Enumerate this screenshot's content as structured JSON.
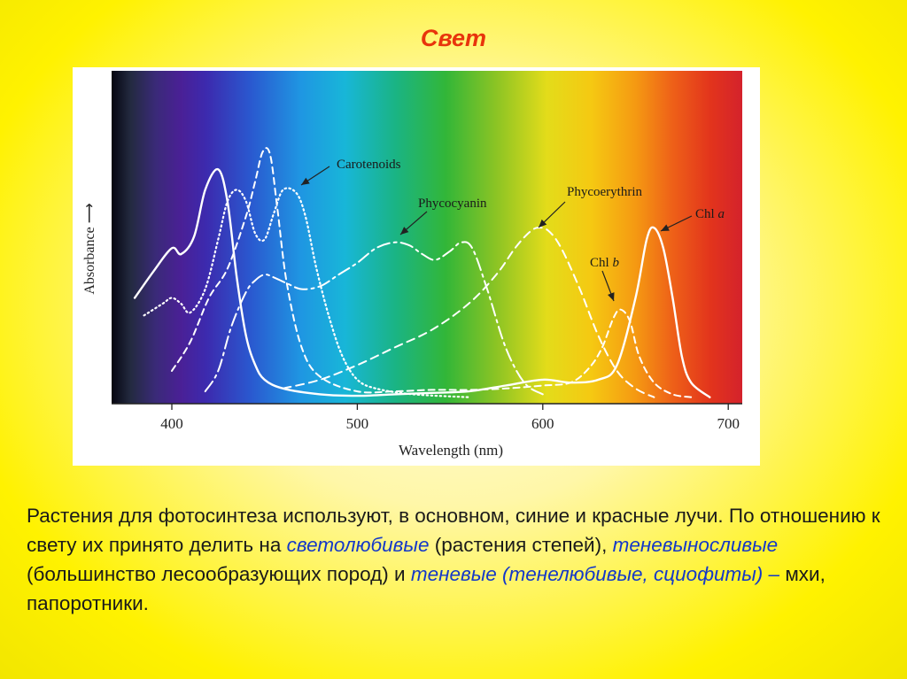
{
  "slide": {
    "title": "Свет"
  },
  "text": {
    "part1": "Растения для фотосинтеза используют, в основном, синие и красные лучи. По отношению к свету их принято делить на ",
    "term1": "светолюбивые",
    "part2": " (растения степей), ",
    "term2": "теневыносливые",
    "part3": " (большинство лесообразующих пород) и ",
    "term3": "теневые (тенелюбивые, сциофиты) –",
    "part4": " мхи, папоротники."
  },
  "chart_data": {
    "type": "line",
    "xlabel": "Wavelength (nm)",
    "ylabel": "Absorbance",
    "xlim": [
      375,
      710
    ],
    "ylim": [
      0,
      1.0
    ],
    "x_ticks": [
      400,
      500,
      600,
      700
    ],
    "y_ticks_shown": false,
    "grid": false,
    "background": "visible spectrum gradient (violet to red)",
    "series": [
      {
        "name": "Chl a",
        "style": "solid",
        "points": [
          [
            380,
            0.35
          ],
          [
            390,
            0.44
          ],
          [
            400,
            0.52
          ],
          [
            405,
            0.5
          ],
          [
            412,
            0.56
          ],
          [
            418,
            0.72
          ],
          [
            425,
            0.79
          ],
          [
            430,
            0.68
          ],
          [
            435,
            0.42
          ],
          [
            440,
            0.22
          ],
          [
            445,
            0.12
          ],
          [
            450,
            0.07
          ],
          [
            460,
            0.04
          ],
          [
            480,
            0.02
          ],
          [
            500,
            0.015
          ],
          [
            520,
            0.02
          ],
          [
            540,
            0.025
          ],
          [
            560,
            0.03
          ],
          [
            580,
            0.05
          ],
          [
            600,
            0.07
          ],
          [
            615,
            0.06
          ],
          [
            630,
            0.07
          ],
          [
            640,
            0.12
          ],
          [
            650,
            0.35
          ],
          [
            656,
            0.55
          ],
          [
            660,
            0.59
          ],
          [
            665,
            0.52
          ],
          [
            670,
            0.35
          ],
          [
            675,
            0.15
          ],
          [
            680,
            0.06
          ],
          [
            690,
            0.01
          ]
        ]
      },
      {
        "name": "Chl b",
        "style": "short-dash",
        "points": [
          [
            400,
            0.1
          ],
          [
            410,
            0.2
          ],
          [
            420,
            0.35
          ],
          [
            430,
            0.45
          ],
          [
            440,
            0.63
          ],
          [
            445,
            0.75
          ],
          [
            449,
            0.85
          ],
          [
            453,
            0.84
          ],
          [
            457,
            0.65
          ],
          [
            462,
            0.4
          ],
          [
            470,
            0.18
          ],
          [
            480,
            0.08
          ],
          [
            500,
            0.03
          ],
          [
            520,
            0.03
          ],
          [
            540,
            0.035
          ],
          [
            560,
            0.035
          ],
          [
            580,
            0.04
          ],
          [
            600,
            0.05
          ],
          [
            615,
            0.06
          ],
          [
            625,
            0.11
          ],
          [
            632,
            0.18
          ],
          [
            638,
            0.28
          ],
          [
            642,
            0.31
          ],
          [
            647,
            0.27
          ],
          [
            652,
            0.15
          ],
          [
            660,
            0.06
          ],
          [
            670,
            0.02
          ],
          [
            680,
            0.01
          ]
        ]
      },
      {
        "name": "Carotenoids",
        "style": "dotted",
        "points": [
          [
            385,
            0.29
          ],
          [
            395,
            0.33
          ],
          [
            400,
            0.35
          ],
          [
            405,
            0.33
          ],
          [
            410,
            0.3
          ],
          [
            418,
            0.38
          ],
          [
            425,
            0.55
          ],
          [
            430,
            0.68
          ],
          [
            435,
            0.72
          ],
          [
            440,
            0.68
          ],
          [
            445,
            0.57
          ],
          [
            450,
            0.55
          ],
          [
            455,
            0.64
          ],
          [
            460,
            0.72
          ],
          [
            467,
            0.71
          ],
          [
            472,
            0.63
          ],
          [
            478,
            0.45
          ],
          [
            485,
            0.28
          ],
          [
            492,
            0.15
          ],
          [
            500,
            0.07
          ],
          [
            510,
            0.04
          ],
          [
            530,
            0.02
          ],
          [
            560,
            0.01
          ]
        ]
      },
      {
        "name": "Phycocyanin",
        "style": "dash-dot",
        "points": [
          [
            418,
            0.03
          ],
          [
            425,
            0.1
          ],
          [
            432,
            0.25
          ],
          [
            440,
            0.37
          ],
          [
            445,
            0.41
          ],
          [
            450,
            0.43
          ],
          [
            455,
            0.42
          ],
          [
            462,
            0.4
          ],
          [
            470,
            0.38
          ],
          [
            480,
            0.39
          ],
          [
            490,
            0.43
          ],
          [
            500,
            0.47
          ],
          [
            510,
            0.52
          ],
          [
            520,
            0.54
          ],
          [
            528,
            0.53
          ],
          [
            535,
            0.5
          ],
          [
            542,
            0.48
          ],
          [
            550,
            0.51
          ],
          [
            556,
            0.54
          ],
          [
            562,
            0.52
          ],
          [
            570,
            0.38
          ],
          [
            580,
            0.18
          ],
          [
            590,
            0.06
          ],
          [
            600,
            0.02
          ]
        ]
      },
      {
        "name": "Phycoerythrin",
        "style": "long-dash",
        "points": [
          [
            460,
            0.04
          ],
          [
            480,
            0.07
          ],
          [
            500,
            0.12
          ],
          [
            520,
            0.18
          ],
          [
            540,
            0.24
          ],
          [
            560,
            0.33
          ],
          [
            575,
            0.43
          ],
          [
            585,
            0.52
          ],
          [
            592,
            0.57
          ],
          [
            597,
            0.59
          ],
          [
            603,
            0.58
          ],
          [
            610,
            0.52
          ],
          [
            620,
            0.38
          ],
          [
            630,
            0.22
          ],
          [
            640,
            0.1
          ],
          [
            650,
            0.04
          ],
          [
            660,
            0.01
          ]
        ]
      }
    ]
  }
}
